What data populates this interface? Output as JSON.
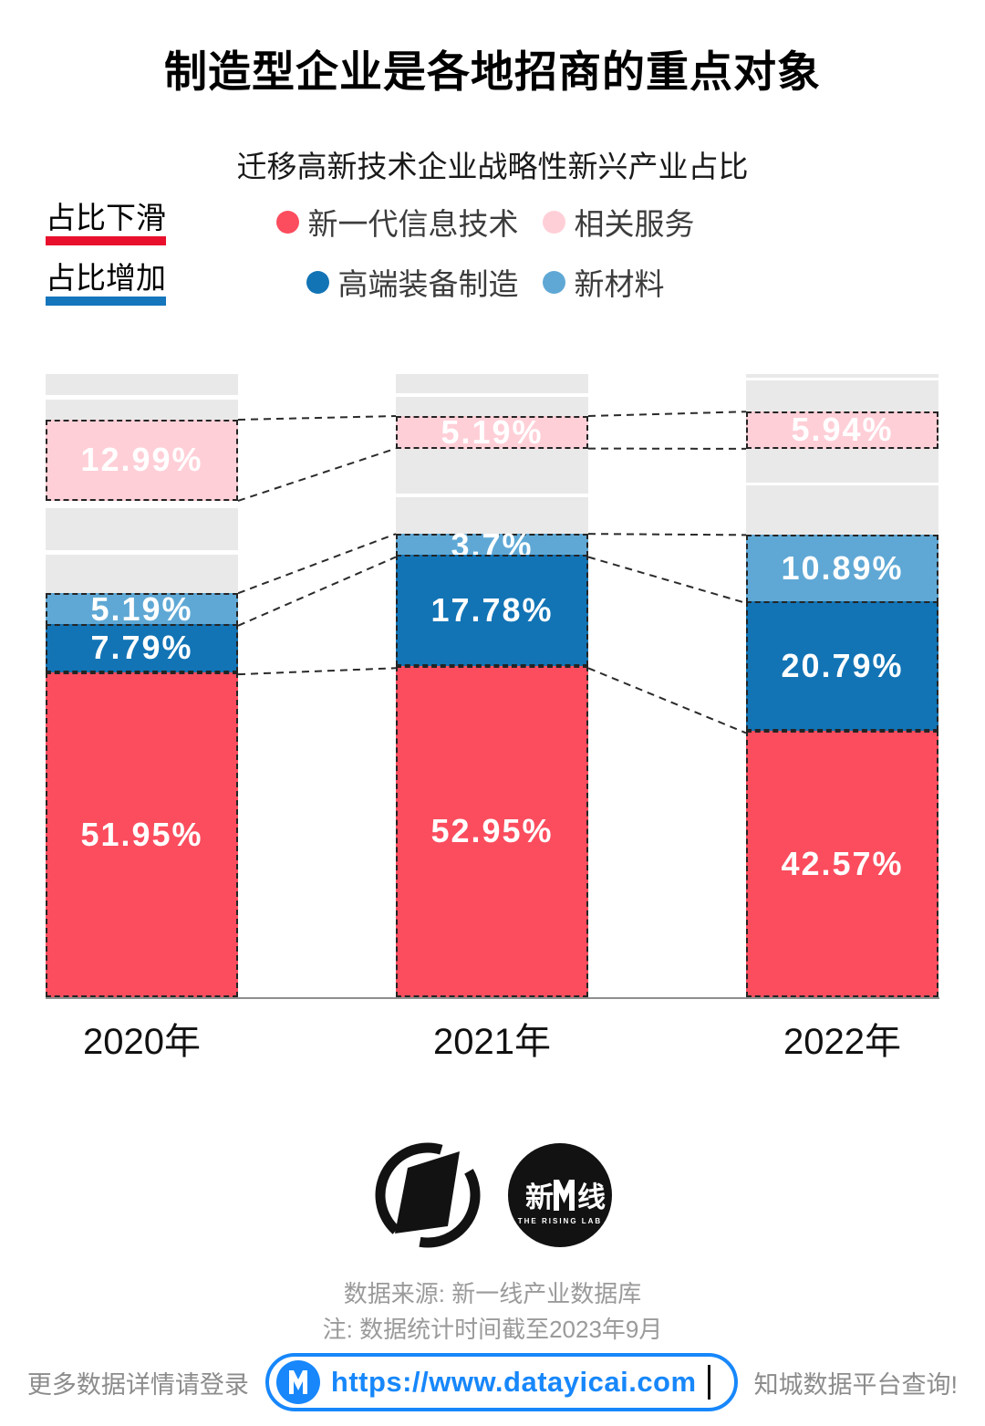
{
  "title": "制造型企业是各地招商的重点对象",
  "subtitle": "迁移高新技术企业战略性新兴产业占比",
  "legend": {
    "rows": [
      {
        "side_label": "占比下滑",
        "underline_color": "#E8102C",
        "items": [
          {
            "label": "新一代信息技术",
            "color": "#FB4D5E"
          },
          {
            "label": "相关服务",
            "color": "#FFCFD7"
          }
        ]
      },
      {
        "side_label": "占比增加",
        "underline_color": "#1576BC",
        "items": [
          {
            "label": "高端装备制造",
            "color": "#1274B5"
          },
          {
            "label": "新材料",
            "color": "#5FA8D5"
          }
        ]
      }
    ]
  },
  "chart_data": {
    "type": "bar",
    "variant": "stacked-percent-columns-with-unlabeled-gray-blocks",
    "title": "迁移高新技术企业战略性新兴产业占比",
    "categories": [
      "2020年",
      "2021年",
      "2022年"
    ],
    "unit": "%",
    "ylim": [
      0,
      100
    ],
    "legend_position": "top",
    "grid": false,
    "gray_color": "#E9E9E9",
    "connector_style": "dashed lines join same segment boundaries between adjacent bars",
    "series": [
      {
        "name": "新一代信息技术",
        "color": "#FB4D5E",
        "values": [
          51.95,
          52.95,
          42.57
        ]
      },
      {
        "name": "高端装备制造",
        "color": "#1274B5",
        "values": [
          7.79,
          17.78,
          20.79
        ]
      },
      {
        "name": "新材料",
        "color": "#5FA8D5",
        "values": [
          5.19,
          3.7,
          10.89
        ]
      },
      {
        "name": "相关服务",
        "color": "#FFCFD7",
        "values": [
          12.99,
          5.19,
          5.94
        ]
      }
    ],
    "bars": [
      {
        "category": "2020年",
        "stack": [
          {
            "kind": "gray",
            "h": 3.36
          },
          {
            "kind": "gap",
            "h": 0.73
          },
          {
            "kind": "gray",
            "h": 3.21
          },
          {
            "kind": "series",
            "series": "相关服务",
            "h": 12.99,
            "label": "12.99%"
          },
          {
            "kind": "gap",
            "h": 1.17
          },
          {
            "kind": "gray",
            "h": 6.72
          },
          {
            "kind": "gap",
            "h": 0.73
          },
          {
            "kind": "gray",
            "h": 6.16
          },
          {
            "kind": "series",
            "series": "新材料",
            "h": 5.19,
            "label": "5.19%"
          },
          {
            "kind": "series",
            "series": "高端装备制造",
            "h": 7.79,
            "label": "7.79%"
          },
          {
            "kind": "series",
            "series": "新一代信息技术",
            "h": 51.95,
            "label": "51.95%"
          }
        ]
      },
      {
        "category": "2021年",
        "stack": [
          {
            "kind": "gray",
            "h": 3.07
          },
          {
            "kind": "gap",
            "h": 0.58
          },
          {
            "kind": "gray",
            "h": 3.07
          },
          {
            "kind": "series",
            "series": "相关服务",
            "h": 5.19,
            "label": "5.19%"
          },
          {
            "kind": "gray",
            "h": 7.26
          },
          {
            "kind": "gap",
            "h": 0.58
          },
          {
            "kind": "gray",
            "h": 5.82
          },
          {
            "kind": "series",
            "series": "新材料",
            "h": 3.7,
            "label": "3.7%"
          },
          {
            "kind": "series",
            "series": "高端装备制造",
            "h": 17.78,
            "label": "17.78%"
          },
          {
            "kind": "series",
            "series": "新一代信息技术",
            "h": 52.95,
            "label": "52.95%"
          }
        ]
      },
      {
        "category": "2022年",
        "stack": [
          {
            "kind": "gray",
            "h": 0.58
          },
          {
            "kind": "gap",
            "h": 0.44
          },
          {
            "kind": "gray",
            "h": 5.0
          },
          {
            "kind": "series",
            "series": "相关服务",
            "h": 5.94,
            "label": "5.94%"
          },
          {
            "kind": "gray",
            "h": 5.4
          },
          {
            "kind": "gap",
            "h": 0.44
          },
          {
            "kind": "gray",
            "h": 7.95
          },
          {
            "kind": "series",
            "series": "新材料",
            "h": 10.89,
            "label": "10.89%"
          },
          {
            "kind": "series",
            "series": "高端装备制造",
            "h": 20.79,
            "label": "20.79%"
          },
          {
            "kind": "series",
            "series": "新一代信息技术",
            "h": 42.57,
            "label": "42.57%"
          }
        ]
      }
    ]
  },
  "logos": {
    "rising_lab": {
      "zh_left": "新",
      "zh_right": "线",
      "en": "THE RISING LAB"
    }
  },
  "source": {
    "line1": "数据来源: 新一线产业数据库",
    "line2": "注: 数据统计时间截至2023年9月"
  },
  "footer": {
    "left_text": "更多数据详情请登录",
    "url": "https://www.datayicai.com",
    "right_text": "知城数据平台查询!",
    "accent": "#1787FB"
  }
}
